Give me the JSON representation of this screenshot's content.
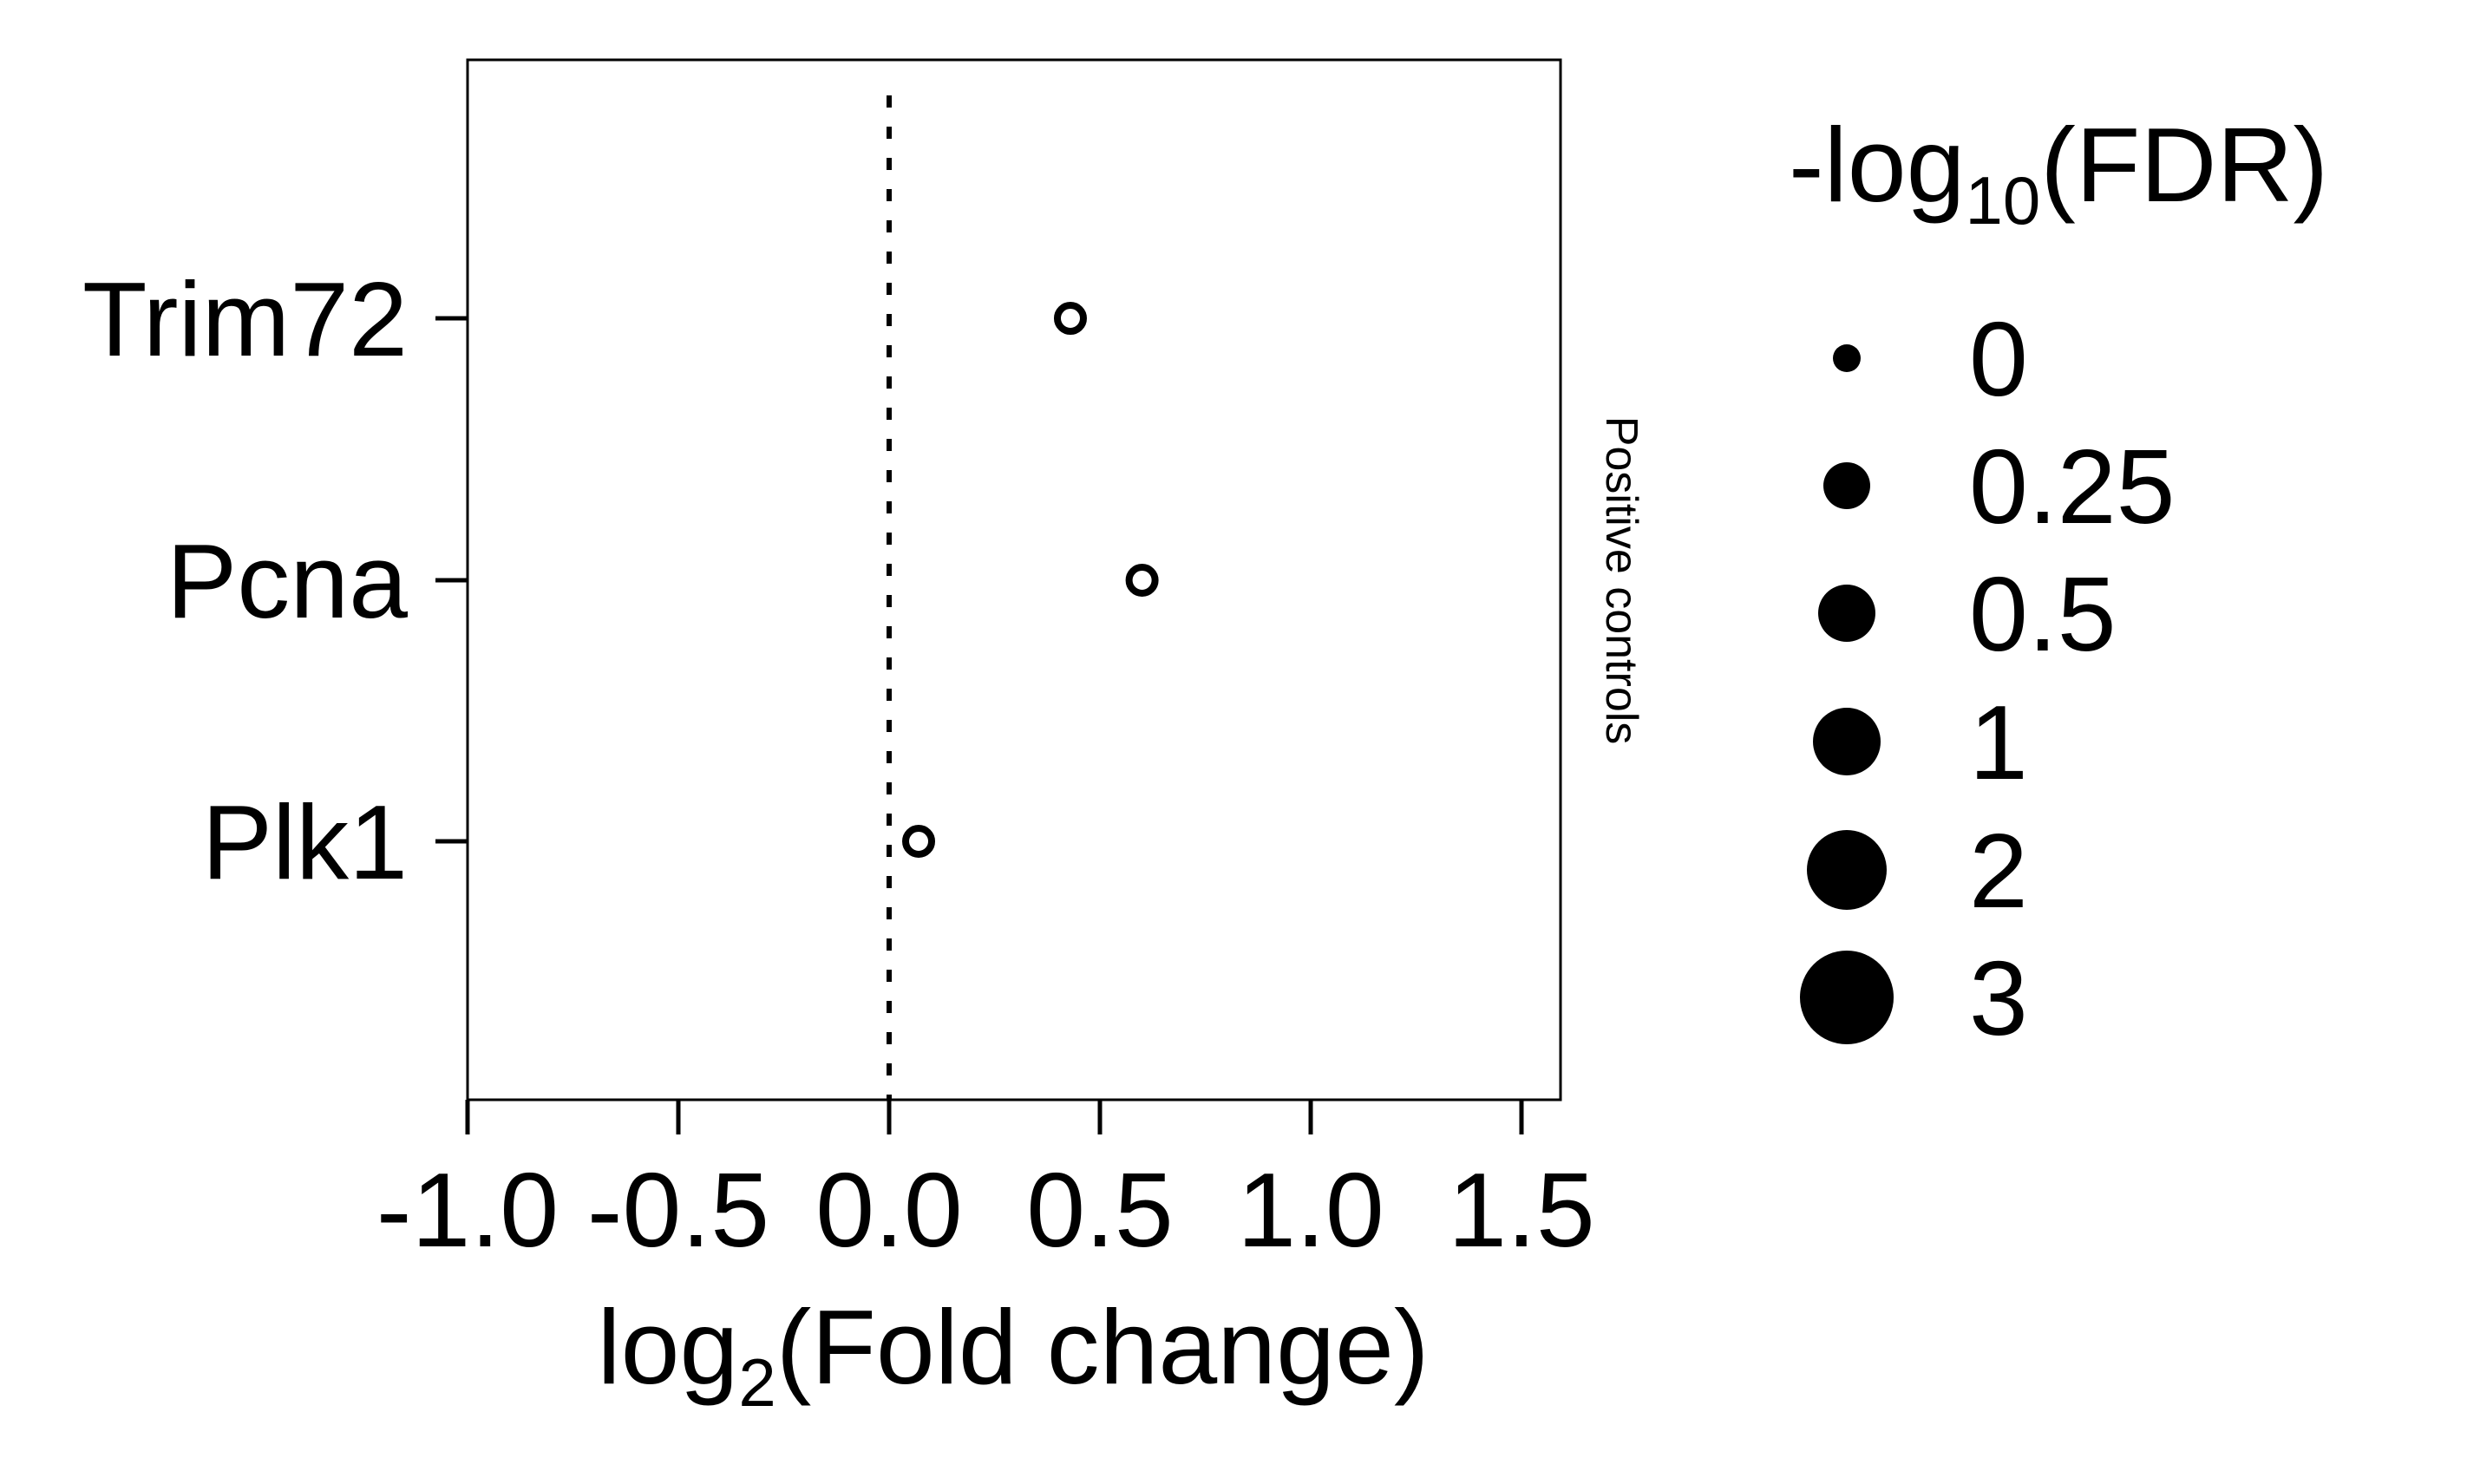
{
  "chart_data": {
    "type": "scatter",
    "title": "",
    "xlabel": {
      "prefix": "log",
      "subscript": "2",
      "suffix": "(Fold change)"
    },
    "ylabel": "",
    "facet_label": "Positive controls",
    "xlim": [
      -1.0,
      1.6
    ],
    "xticks": [
      -1.0,
      -0.5,
      0.0,
      0.5,
      1.0,
      1.5
    ],
    "xtick_labels": [
      "-1.0",
      "-0.5",
      "0.0",
      "0.5",
      "1.0",
      "1.5"
    ],
    "reference_line_x": 0.0,
    "categories": [
      "Trim72",
      "Pcna",
      "Plk1"
    ],
    "points": [
      {
        "gene": "Trim72",
        "x": 0.43,
        "fdr_neglog10": 0
      },
      {
        "gene": "Pcna",
        "x": 0.6,
        "fdr_neglog10": 0
      },
      {
        "gene": "Plk1",
        "x": 0.07,
        "fdr_neglog10": 0
      }
    ],
    "legend": {
      "title": {
        "prefix": "-log",
        "subscript": "10",
        "suffix": "(FDR)"
      },
      "position": "right",
      "entries": [
        {
          "label": "0",
          "value": 0
        },
        {
          "label": "0.25",
          "value": 0.25
        },
        {
          "label": "0.5",
          "value": 0.5
        },
        {
          "label": "1",
          "value": 1
        },
        {
          "label": "2",
          "value": 2
        },
        {
          "label": "3",
          "value": 3
        }
      ]
    },
    "grid": false
  }
}
